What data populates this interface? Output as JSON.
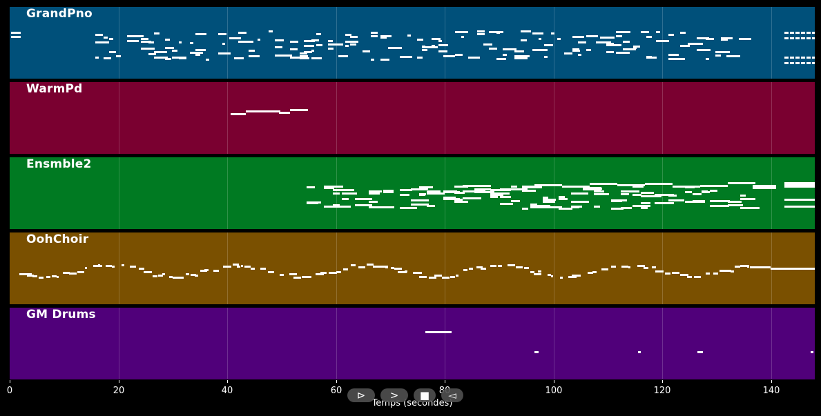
{
  "tracks": [
    {
      "id": "grandpno",
      "name": "GrandPno",
      "color": "#00507a"
    },
    {
      "id": "warmpd",
      "name": "WarmPd",
      "color": "#7a0030"
    },
    {
      "id": "ensmble2",
      "name": "Ensmble2",
      "color": "#007a22"
    },
    {
      "id": "oohchoir",
      "name": "OohChoir",
      "color": "#7a5000"
    },
    {
      "id": "gmdrums",
      "name": "GM Drums",
      "color": "#50007a"
    }
  ],
  "axis": {
    "label": "Temps (secondes)",
    "xlim": [
      0,
      148
    ],
    "ticks": [
      "0",
      "20",
      "40",
      "60",
      "80",
      "100",
      "120",
      "140"
    ]
  },
  "transport": {
    "play": "⊳",
    "next": ">",
    "stop": "■",
    "prev": "◅"
  }
}
